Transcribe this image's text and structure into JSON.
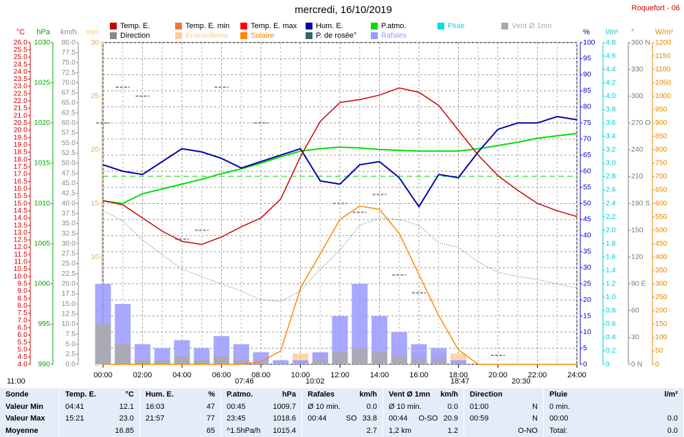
{
  "chart_data": {
    "type": "line",
    "title": "mercredi, 16/10/2019",
    "station": "Roquefort - 06",
    "legend": [
      {
        "name": "Temp. E.",
        "color": "#cc0000"
      },
      {
        "name": "Temp. E. min",
        "color": "#f07840"
      },
      {
        "name": "Temp. E. max",
        "color": "#ff0000"
      },
      {
        "name": "Hum. E.",
        "color": "#0000aa"
      },
      {
        "name": "P.atmo.",
        "color": "#00dd00"
      },
      {
        "name": "Pluie",
        "color": "#00e0e0"
      },
      {
        "name": "Vent Ø 1mn",
        "color": "#aaaaaa"
      },
      {
        "name": "Direction",
        "color": "#888888"
      },
      {
        "name": "Ensoleilleme",
        "color": "#ffcc99"
      },
      {
        "name": "Solaire",
        "color": "#ff8800"
      },
      {
        "name": "P. de rosée°",
        "color": "#336666"
      },
      {
        "name": "Rafales",
        "color": "#9999ff"
      }
    ],
    "xlim": [
      0,
      24
    ],
    "xticks": [
      {
        "value": 0,
        "label": "00:00"
      },
      {
        "value": 2,
        "label": "02:00"
      },
      {
        "value": 4,
        "label": "04:00"
      },
      {
        "value": 6,
        "label": "06:00"
      },
      {
        "value": 8,
        "label": "08:00"
      },
      {
        "value": 10,
        "label": "10:00"
      },
      {
        "value": 12,
        "label": "12:00"
      },
      {
        "value": 14,
        "label": "14:00"
      },
      {
        "value": 16,
        "label": "16:00"
      },
      {
        "value": 18,
        "label": "18:00"
      },
      {
        "value": 20,
        "label": "20:00"
      },
      {
        "value": 22,
        "label": "22:00"
      },
      {
        "value": 24,
        "label": "24:00"
      }
    ],
    "grid": true,
    "axes": [
      {
        "label": "°C",
        "color": "#cc0000",
        "lim": [
          4,
          26
        ],
        "ticks": [
          {
            "value": 4,
            "label": "4.0"
          },
          4.5,
          {
            "value": 5,
            "label": "5.0"
          },
          5.5,
          {
            "value": 6,
            "label": "6.0"
          },
          6.5,
          {
            "value": 7,
            "label": "7.0"
          },
          7.5,
          {
            "value": 8,
            "label": "8.0"
          },
          8.5,
          {
            "value": 9,
            "label": "9.0"
          },
          9.5,
          {
            "value": 10,
            "label": "10.0"
          },
          10.5,
          {
            "value": 11,
            "label": "11.0"
          },
          11.5,
          {
            "value": 12,
            "label": "12.0"
          },
          12.5,
          {
            "value": 13,
            "label": "13.0"
          },
          13.5,
          {
            "value": 14,
            "label": "14.0"
          },
          14.5,
          {
            "value": 15,
            "label": "15.0"
          },
          15.5,
          {
            "value": 16,
            "label": "16.0"
          },
          16.5,
          {
            "value": 17,
            "label": "17.0"
          },
          17.5,
          {
            "value": 18,
            "label": "18.0"
          },
          18.5,
          {
            "value": 19,
            "label": "19.0"
          },
          19.5,
          {
            "value": 20,
            "label": "20.0"
          },
          20.5,
          {
            "value": 21,
            "label": "21.0"
          },
          21.5,
          {
            "value": 22,
            "label": "22.0"
          },
          22.5,
          {
            "value": 23,
            "label": "23.0"
          },
          23.5,
          {
            "value": 24,
            "label": "24.0"
          },
          24.5,
          {
            "value": 25,
            "label": "25.0"
          },
          25.5,
          {
            "value": 26,
            "label": "26.0"
          }
        ]
      },
      {
        "label": "hPa",
        "color": "#00aa00",
        "lim": [
          990,
          1030
        ],
        "ticks": [
          990,
          995,
          1000,
          1005,
          1010,
          1015,
          1020,
          1025,
          1030
        ]
      },
      {
        "label": "km/h",
        "color": "#888888",
        "lim": [
          0,
          80
        ],
        "ticks": [
          {
            "value": 0,
            "label": "0.0"
          },
          2.5,
          {
            "value": 5,
            "label": "5.0"
          },
          7.5,
          {
            "value": 10,
            "label": "10.0"
          },
          12.5,
          {
            "value": 15,
            "label": "15.0"
          },
          17.5,
          {
            "value": 20,
            "label": "20.0"
          },
          22.5,
          {
            "value": 25,
            "label": "25.0"
          },
          27.5,
          {
            "value": 30,
            "label": "30.0"
          },
          32.5,
          {
            "value": 35,
            "label": "35.0"
          },
          37.5,
          {
            "value": 40,
            "label": "40.0"
          },
          42.5,
          {
            "value": 45,
            "label": "45.0"
          },
          47.5,
          {
            "value": 50,
            "label": "50.0"
          },
          52.5,
          {
            "value": 55,
            "label": "55.0"
          },
          57.5,
          {
            "value": 60,
            "label": "60.0"
          },
          62.5,
          {
            "value": 65,
            "label": "65.0"
          },
          67.5,
          {
            "value": 70,
            "label": "70.0"
          },
          72.5,
          {
            "value": 75,
            "label": "75.0"
          },
          77.5,
          {
            "value": 80,
            "label": "80.0"
          }
        ]
      },
      {
        "label": "min",
        "color": "#ffcc66",
        "lim": [
          0,
          30
        ],
        "ticks": [
          0,
          5,
          10,
          15,
          20,
          25,
          30
        ]
      },
      {
        "label": "%",
        "color": "#0000cc",
        "lim": [
          0,
          100
        ],
        "ticks": [
          0,
          5,
          10,
          15,
          20,
          25,
          30,
          35,
          40,
          45,
          50,
          55,
          60,
          65,
          70,
          75,
          80,
          85,
          90,
          95,
          100
        ]
      },
      {
        "label": "l/m²",
        "color": "#00cccc",
        "lim": [
          0,
          4.8
        ],
        "ticks": [
          0,
          0.2,
          0.4,
          0.6,
          0.8,
          {
            "value": 1,
            "label": "1.0"
          },
          1.2,
          1.4,
          1.6,
          1.8,
          {
            "value": 2,
            "label": "2.0"
          },
          2.2,
          2.4,
          2.6,
          2.8,
          {
            "value": 3,
            "label": "3.0"
          },
          3.2,
          3.4,
          3.6,
          3.8,
          {
            "value": 4,
            "label": "4.0"
          },
          4.2,
          4.4,
          4.6,
          4.8
        ]
      },
      {
        "label": "°",
        "color": "#777777",
        "lim": [
          0,
          360
        ],
        "ticks": [
          {
            "value": 0,
            "label": "0 N"
          },
          30,
          60,
          {
            "value": 90,
            "label": "90 E"
          },
          120,
          150,
          {
            "value": 180,
            "label": "180 S"
          },
          210,
          240,
          {
            "value": 270,
            "label": "270 O"
          },
          300,
          330,
          {
            "value": 360,
            "label": "360 N"
          }
        ]
      },
      {
        "label": "W/m²",
        "color": "#dd8800",
        "lim": [
          0,
          1200
        ],
        "ticks": [
          0,
          50,
          100,
          150,
          200,
          250,
          300,
          350,
          400,
          450,
          500,
          550,
          600,
          650,
          700,
          750,
          800,
          850,
          900,
          950,
          1000,
          1050,
          1100,
          1150,
          1200
        ]
      }
    ],
    "x": [
      0,
      1,
      2,
      3,
      4,
      5,
      6,
      7,
      8,
      9,
      10,
      11,
      12,
      13,
      14,
      15,
      16,
      17,
      18,
      19,
      20,
      21,
      22,
      23,
      24
    ],
    "series": [
      {
        "name": "Ensoleilleme",
        "color": "#ffcc99",
        "axis": 3,
        "style": "bars",
        "values": [
          0,
          0,
          0,
          0,
          0,
          0,
          0,
          0,
          0,
          0,
          1,
          1,
          1,
          1,
          1,
          1,
          1,
          1,
          1,
          0,
          0,
          0,
          0,
          0,
          0
        ]
      },
      {
        "name": "Rafales",
        "color": "#9999ff",
        "axis": 2,
        "style": "bars",
        "values": [
          20,
          15,
          5,
          4,
          6,
          4,
          7,
          5,
          3,
          1,
          1,
          3,
          12,
          20,
          12,
          8,
          5,
          4,
          1,
          0,
          0,
          0,
          0,
          0,
          0
        ]
      },
      {
        "name": "Vent Ø 1mn",
        "color": "#aaaaaa",
        "axis": 2,
        "style": "bars",
        "values": [
          10,
          5,
          1,
          1,
          2,
          1,
          2,
          1,
          0.5,
          0,
          0,
          1,
          3,
          4,
          3,
          2,
          1,
          1,
          0,
          0,
          0,
          0,
          0,
          0,
          0
        ]
      },
      {
        "name": "Direction",
        "color": "#888888",
        "axis": 6,
        "style": "dash",
        "values": [
          270,
          310,
          300,
          null,
          140,
          150,
          310,
          null,
          270,
          null,
          null,
          null,
          180,
          170,
          190,
          100,
          80,
          null,
          null,
          null,
          10,
          null,
          null,
          null,
          null
        ]
      },
      {
        "name": "Solaire",
        "color": "#ff8800",
        "axis": 7,
        "style": "line",
        "values": [
          0,
          0,
          0,
          0,
          0,
          0,
          0,
          0,
          10,
          50,
          284,
          412,
          540,
          590,
          578,
          488,
          335,
          182,
          54,
          0,
          0,
          0,
          0,
          0,
          0
        ]
      },
      {
        "name": "P. de rosée°",
        "color": "#336666",
        "axis": 0,
        "style": "dotted",
        "values": [
          14.5,
          13.8,
          12.5,
          11.5,
          10.5,
          10,
          9.5,
          9,
          8.4,
          8.3,
          9,
          10.5,
          11.8,
          13.5,
          14,
          13.9,
          13.5,
          12.3,
          12,
          11,
          10.3,
          10,
          9.8,
          9.5,
          9.2
        ]
      },
      {
        "name": "P.atmo.",
        "color": "#00dd00",
        "axis": 1,
        "style": "line",
        "values": [
          1010.3,
          1010,
          1011.2,
          1011.8,
          1012.4,
          1013,
          1013.7,
          1014.3,
          1015,
          1015.8,
          1016.5,
          1016.8,
          1017,
          1016.9,
          1016.7,
          1016.6,
          1016.5,
          1016.5,
          1016.5,
          1016.8,
          1017.2,
          1017.6,
          1018.1,
          1018.4,
          1018.7
        ]
      },
      {
        "name": "Hum. E.",
        "color": "#0000aa",
        "axis": 4,
        "style": "line",
        "values": [
          62,
          60,
          59,
          63,
          67,
          66,
          64,
          61,
          63,
          65,
          67,
          57,
          56,
          62,
          63,
          58,
          49,
          59,
          58,
          66,
          73,
          75,
          75,
          77,
          76
        ]
      },
      {
        "name": "Temp. E.",
        "color": "#cc0000",
        "axis": 0,
        "style": "line",
        "values": [
          15.2,
          14.9,
          14,
          13.1,
          12.4,
          12.2,
          12.7,
          13.4,
          14,
          15.3,
          18.2,
          20.6,
          21.9,
          22.1,
          22.4,
          22.9,
          22.6,
          21.7,
          20,
          18.3,
          16.9,
          15.9,
          15,
          14.5,
          14.1
        ]
      }
    ],
    "mean_line": {
      "axis": 0,
      "value": 16.85,
      "color": "#00cc00"
    },
    "sun_times": [
      "11:00",
      "07:46",
      "10:02",
      "18:47",
      "20:30"
    ]
  },
  "table": {
    "header": [
      [
        "Sonde"
      ],
      [
        "Temp. E.",
        "°C"
      ],
      [
        "Hum. E.",
        "%"
      ],
      [
        "P.atmo.",
        "hPa"
      ],
      [
        "Rafales",
        "km/h"
      ],
      [
        "Vent Ø 1mn",
        "km/h"
      ],
      [
        "Direction"
      ],
      [
        "Pluie",
        "l/m²"
      ]
    ],
    "rows": [
      [
        [
          "Valeur Min"
        ],
        [
          "04:41",
          "12.1"
        ],
        [
          "16:03",
          "47"
        ],
        [
          "00:45",
          "1009.7"
        ],
        [
          "Ø 10 min.",
          "0.0"
        ],
        [
          "Ø 10 min.",
          "0.0"
        ],
        [
          "01:00",
          "N"
        ],
        [
          "0 min."
        ]
      ],
      [
        [
          "Valeur Max"
        ],
        [
          "15:21",
          "23.0"
        ],
        [
          "21:57",
          "77"
        ],
        [
          "23:45",
          "1018.6"
        ],
        [
          "00:44",
          "SO",
          "33.8"
        ],
        [
          "00:44",
          "O-SO",
          "20.9"
        ],
        [
          "00:59",
          "N"
        ],
        [
          "00:00",
          "0.0"
        ]
      ],
      [
        [
          "Moyenne"
        ],
        [
          "",
          "16.85"
        ],
        [
          "",
          "65"
        ],
        [
          "^1.5hPa/h",
          "1015.4"
        ],
        [
          "",
          "2.7"
        ],
        [
          "1,2 km",
          "1.2"
        ],
        [
          "",
          "O-NO"
        ],
        [
          "Total:",
          "0.0"
        ]
      ]
    ]
  }
}
